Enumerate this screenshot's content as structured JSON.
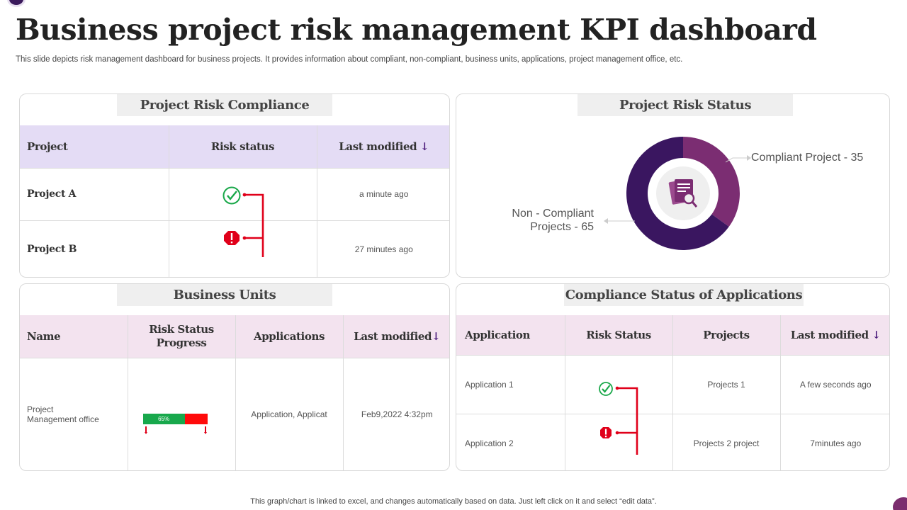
{
  "page": {
    "title": "Business project risk management KPI dashboard",
    "subtitle": "This slide depicts risk management dashboard for business projects. It provides information about compliant, non-compliant, business units, applications, project management office, etc.",
    "footer": "This graph/chart is linked to excel,  and changes automatically based on data. Just left click on it and select “edit data”."
  },
  "compliance": {
    "heading": "Project Risk Compliance",
    "columns": [
      "Project",
      "Risk status",
      "Last modified"
    ],
    "rows": [
      {
        "project": "Project A",
        "status": "compliant",
        "modified": "a minute ago"
      },
      {
        "project": "Project B",
        "status": "non-compliant",
        "modified": "27 minutes ago"
      }
    ]
  },
  "risk_status": {
    "heading": "Project Risk Status",
    "compliant_label": "Compliant Project - 35",
    "noncompliant_label_line1": "Non - Compliant",
    "noncompliant_label_line2": "Projects - 65",
    "center_icon": "document-search-icon"
  },
  "chart_data": {
    "type": "pie",
    "title": "Project Risk Status",
    "categories": [
      "Compliant Project",
      "Non - Compliant Projects"
    ],
    "values": [
      35,
      65
    ],
    "colors": [
      "#7b2d72",
      "#3a1660"
    ]
  },
  "business_units": {
    "heading": "Business Units",
    "columns": [
      "Name",
      "Risk Status Progress",
      "Applications",
      "Last modified"
    ],
    "row": {
      "name_line1": "Project",
      "name_line2": "Management office",
      "progress_label": "65%",
      "progress_value": 65,
      "applications": "Application, Applicat",
      "modified": "Feb9,2022 4:32pm"
    }
  },
  "applications": {
    "heading": "Compliance Status of Applications",
    "columns": [
      "Application",
      "Risk Status",
      "Projects",
      "Last modified"
    ],
    "rows": [
      {
        "application": "Application 1",
        "status": "compliant",
        "projects": "Projects 1",
        "modified": "A few seconds ago"
      },
      {
        "application": "Application 2",
        "status": "non-compliant",
        "projects": "Projects 2 project",
        "modified": "7minutes ago"
      }
    ]
  },
  "colors": {
    "accent_dark": "#3a1660",
    "accent_light": "#7b2d72",
    "ok": "#1aa84a",
    "warn": "#e0001a",
    "progress_ok": "#18a84c",
    "progress_bad": "#ff0a0a"
  }
}
